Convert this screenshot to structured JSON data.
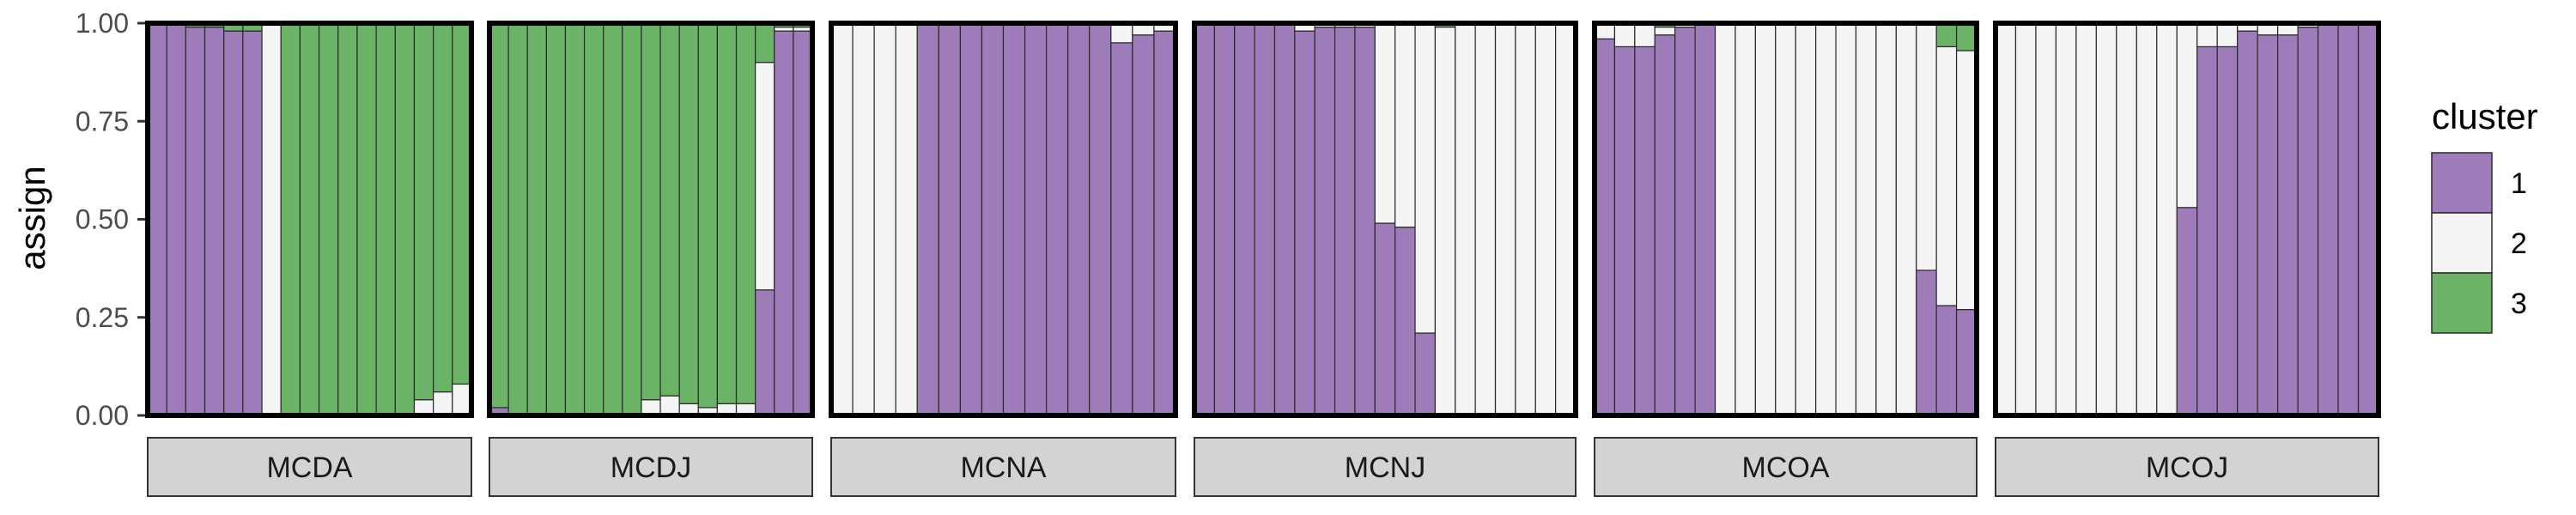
{
  "chart_data": {
    "type": "bar",
    "stacked": true,
    "facet_type": "stacked-bar-facets",
    "ylabel": "assign",
    "ylim": [
      0,
      1
    ],
    "yticks": [
      0,
      0.25,
      0.5,
      0.75,
      1.0
    ],
    "ytick_labels": [
      "0.00",
      "0.25",
      "0.50",
      "0.75",
      "1.00"
    ],
    "legend": {
      "title": "cluster",
      "placement": "right",
      "entries": [
        {
          "name": "1",
          "color": "#9e7bb9"
        },
        {
          "name": "2",
          "color": "#f4f4f4"
        },
        {
          "name": "3",
          "color": "#6bb366"
        }
      ]
    },
    "facets": [
      {
        "label": "MCDA",
        "bars": [
          [
            1.0,
            0.0,
            0.0
          ],
          [
            1.0,
            0.0,
            0.0
          ],
          [
            0.99,
            0.0,
            0.01
          ],
          [
            0.99,
            0.0,
            0.01
          ],
          [
            0.98,
            0.0,
            0.02
          ],
          [
            0.98,
            0.0,
            0.02
          ],
          [
            0.0,
            1.0,
            0.0
          ],
          [
            0.0,
            0.0,
            1.0
          ],
          [
            0.0,
            0.0,
            1.0
          ],
          [
            0.0,
            0.0,
            1.0
          ],
          [
            0.0,
            0.0,
            1.0
          ],
          [
            0.0,
            0.0,
            1.0
          ],
          [
            0.0,
            0.0,
            1.0
          ],
          [
            0.0,
            0.0,
            1.0
          ],
          [
            0.0,
            0.04,
            0.96
          ],
          [
            0.0,
            0.06,
            0.94
          ],
          [
            0.0,
            0.08,
            0.92
          ]
        ]
      },
      {
        "label": "MCDJ",
        "bars": [
          [
            0.02,
            0.0,
            0.98
          ],
          [
            0.0,
            0.0,
            1.0
          ],
          [
            0.0,
            0.0,
            1.0
          ],
          [
            0.0,
            0.0,
            1.0
          ],
          [
            0.0,
            0.0,
            1.0
          ],
          [
            0.0,
            0.0,
            1.0
          ],
          [
            0.0,
            0.0,
            1.0
          ],
          [
            0.0,
            0.0,
            1.0
          ],
          [
            0.0,
            0.04,
            0.96
          ],
          [
            0.0,
            0.05,
            0.95
          ],
          [
            0.0,
            0.03,
            0.97
          ],
          [
            0.0,
            0.02,
            0.98
          ],
          [
            0.0,
            0.03,
            0.97
          ],
          [
            0.0,
            0.03,
            0.97
          ],
          [
            0.32,
            0.58,
            0.1
          ],
          [
            0.98,
            0.01,
            0.01
          ],
          [
            0.98,
            0.01,
            0.01
          ]
        ]
      },
      {
        "label": "MCNA",
        "bars": [
          [
            0.0,
            1.0,
            0.0
          ],
          [
            0.0,
            1.0,
            0.0
          ],
          [
            0.0,
            1.0,
            0.0
          ],
          [
            0.0,
            1.0,
            0.0
          ],
          [
            1.0,
            0.0,
            0.0
          ],
          [
            1.0,
            0.0,
            0.0
          ],
          [
            1.0,
            0.0,
            0.0
          ],
          [
            1.0,
            0.0,
            0.0
          ],
          [
            1.0,
            0.0,
            0.0
          ],
          [
            1.0,
            0.0,
            0.0
          ],
          [
            1.0,
            0.0,
            0.0
          ],
          [
            1.0,
            0.0,
            0.0
          ],
          [
            1.0,
            0.0,
            0.0
          ],
          [
            0.95,
            0.05,
            0.0
          ],
          [
            0.97,
            0.03,
            0.0
          ],
          [
            0.98,
            0.02,
            0.0
          ]
        ]
      },
      {
        "label": "MCNJ",
        "bars": [
          [
            1.0,
            0.0,
            0.0
          ],
          [
            1.0,
            0.0,
            0.0
          ],
          [
            1.0,
            0.0,
            0.0
          ],
          [
            1.0,
            0.0,
            0.0
          ],
          [
            1.0,
            0.0,
            0.0
          ],
          [
            0.98,
            0.02,
            0.0
          ],
          [
            0.99,
            0.01,
            0.0
          ],
          [
            0.99,
            0.01,
            0.0
          ],
          [
            0.99,
            0.01,
            0.0
          ],
          [
            0.49,
            0.51,
            0.0
          ],
          [
            0.48,
            0.52,
            0.0
          ],
          [
            0.21,
            0.79,
            0.0
          ],
          [
            0.0,
            0.99,
            0.01
          ],
          [
            0.0,
            1.0,
            0.0
          ],
          [
            0.0,
            1.0,
            0.0
          ],
          [
            0.0,
            1.0,
            0.0
          ],
          [
            0.0,
            1.0,
            0.0
          ],
          [
            0.0,
            1.0,
            0.0
          ],
          [
            0.0,
            1.0,
            0.0
          ]
        ]
      },
      {
        "label": "MCOA",
        "bars": [
          [
            0.96,
            0.04,
            0.0
          ],
          [
            0.94,
            0.06,
            0.0
          ],
          [
            0.94,
            0.06,
            0.0
          ],
          [
            0.97,
            0.02,
            0.01
          ],
          [
            0.99,
            0.01,
            0.0
          ],
          [
            1.0,
            0.0,
            0.0
          ],
          [
            0.0,
            1.0,
            0.0
          ],
          [
            0.0,
            1.0,
            0.0
          ],
          [
            0.0,
            1.0,
            0.0
          ],
          [
            0.0,
            1.0,
            0.0
          ],
          [
            0.0,
            1.0,
            0.0
          ],
          [
            0.0,
            1.0,
            0.0
          ],
          [
            0.0,
            1.0,
            0.0
          ],
          [
            0.0,
            1.0,
            0.0
          ],
          [
            0.0,
            1.0,
            0.0
          ],
          [
            0.0,
            1.0,
            0.0
          ],
          [
            0.37,
            0.63,
            0.0
          ],
          [
            0.28,
            0.66,
            0.06
          ],
          [
            0.27,
            0.66,
            0.07
          ]
        ]
      },
      {
        "label": "MCOJ",
        "bars": [
          [
            0.0,
            1.0,
            0.0
          ],
          [
            0.0,
            1.0,
            0.0
          ],
          [
            0.0,
            1.0,
            0.0
          ],
          [
            0.0,
            1.0,
            0.0
          ],
          [
            0.0,
            1.0,
            0.0
          ],
          [
            0.0,
            1.0,
            0.0
          ],
          [
            0.0,
            1.0,
            0.0
          ],
          [
            0.0,
            1.0,
            0.0
          ],
          [
            0.0,
            1.0,
            0.0
          ],
          [
            0.53,
            0.47,
            0.0
          ],
          [
            0.94,
            0.06,
            0.0
          ],
          [
            0.94,
            0.06,
            0.0
          ],
          [
            0.98,
            0.02,
            0.0
          ],
          [
            0.97,
            0.03,
            0.0
          ],
          [
            0.97,
            0.03,
            0.0
          ],
          [
            0.99,
            0.01,
            0.0
          ],
          [
            1.0,
            0.0,
            0.0
          ],
          [
            1.0,
            0.0,
            0.0
          ],
          [
            1.0,
            0.0,
            0.0
          ]
        ]
      }
    ]
  }
}
